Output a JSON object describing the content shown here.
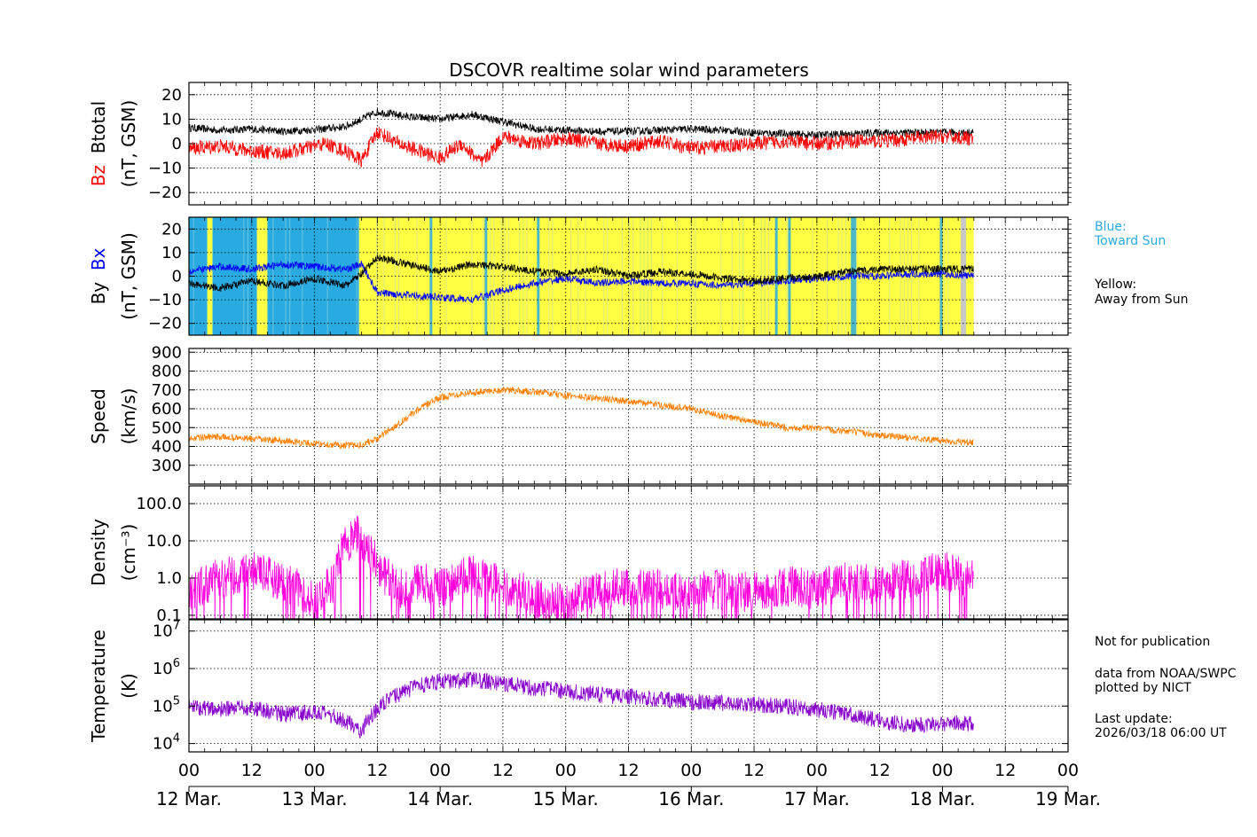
{
  "title": "DSCOVR realtime solar wind parameters",
  "colors": {
    "bz": "#ff0000",
    "btotal": "#000000",
    "bx": "#0000ff",
    "by": "#000000",
    "toward_sun": "#29abe2",
    "away_from_sun": "#ffff44",
    "no_data": "#c8c8c8",
    "speed": "#ff8000",
    "density": "#ff00dd",
    "temperature": "#8800cc"
  },
  "legend": {
    "blue_label": "Blue:",
    "blue_desc": "Toward Sun",
    "yellow_label": "Yellow:",
    "yellow_desc": "Away from Sun"
  },
  "notes": {
    "not_for_publication": "Not for publication",
    "data_from": "data from NOAA/SWPC",
    "plotted_by": "plotted by NICT",
    "last_update_label": "Last update:",
    "last_update_value": "2026/03/18 06:00 UT"
  },
  "chart_data": [
    {
      "id": "bz-btotal",
      "type": "line",
      "ylabel_colored": [
        {
          "text": "Bz",
          "color": "#ff0000"
        },
        {
          "text": "Btotal",
          "color": "#000000"
        }
      ],
      "ylabel_units": "(nT, GSM)",
      "ylim": [
        -25,
        25
      ],
      "yticks": [
        20,
        10,
        0,
        -10,
        -20
      ],
      "ytick_labels": [
        "20",
        "10",
        "0",
        "−10",
        "−20"
      ],
      "series": [
        {
          "name": "Btotal",
          "color": "#000000",
          "x": [
            0,
            6,
            12,
            18,
            22,
            26,
            30,
            36,
            42,
            48,
            54,
            60,
            66,
            72,
            78,
            84,
            90,
            96,
            102,
            108,
            114,
            120,
            126,
            132,
            138,
            144,
            150
          ],
          "y": [
            6.5,
            5.5,
            6,
            5,
            5.5,
            6,
            7,
            13,
            11,
            10,
            12,
            9,
            6,
            5.5,
            5,
            5,
            5.5,
            6,
            5.5,
            4.5,
            4,
            3.5,
            4,
            4.5,
            4.5,
            4.5,
            4.5
          ]
        },
        {
          "name": "Bz",
          "color": "#ff0000",
          "x": [
            0,
            6,
            12,
            18,
            22,
            26,
            30,
            33,
            36,
            40,
            44,
            48,
            52,
            56,
            60,
            66,
            72,
            78,
            84,
            90,
            96,
            102,
            108,
            114,
            120,
            126,
            132,
            138,
            144,
            150
          ],
          "y": [
            -2,
            -1,
            -3,
            -4,
            -2,
            0,
            -3,
            -7,
            5,
            0,
            -3,
            -6,
            0,
            -8,
            3,
            0,
            2,
            0,
            -1,
            1,
            -2,
            -1,
            0,
            1,
            0,
            1,
            1,
            2,
            3,
            2
          ]
        }
      ]
    },
    {
      "id": "by-bx",
      "type": "line",
      "ylabel_colored": [
        {
          "text": "By",
          "color": "#000000"
        },
        {
          "text": "Bx",
          "color": "#0000ff"
        }
      ],
      "ylabel_units": "(nT, GSM)",
      "ylim": [
        -25,
        25
      ],
      "yticks": [
        20,
        10,
        0,
        -10,
        -20
      ],
      "ytick_labels": [
        "20",
        "10",
        "0",
        "−10",
        "−20"
      ],
      "sector_background": [
        {
          "from": 0,
          "to": 3.5,
          "sector": "toward"
        },
        {
          "from": 3.5,
          "to": 4.5,
          "sector": "away"
        },
        {
          "from": 4.5,
          "to": 13,
          "sector": "toward"
        },
        {
          "from": 13,
          "to": 15,
          "sector": "away"
        },
        {
          "from": 15,
          "to": 32.5,
          "sector": "toward"
        },
        {
          "from": 32.5,
          "to": 150,
          "sector": "away"
        }
      ],
      "sector_stripes": [
        46,
        56.5,
        66.5,
        112,
        114.5,
        126.5,
        127,
        143.5,
        148
      ],
      "no_data_band": [
        147.5,
        148.5
      ],
      "series": [
        {
          "name": "Bx",
          "color": "#0000ff",
          "x": [
            0,
            6,
            12,
            18,
            24,
            30,
            33,
            36,
            42,
            48,
            54,
            60,
            66,
            72,
            78,
            84,
            90,
            96,
            102,
            108,
            114,
            120,
            126,
            132,
            138,
            144,
            150
          ],
          "y": [
            2,
            4,
            3,
            5,
            4,
            3,
            5,
            -7,
            -8,
            -9,
            -10,
            -6,
            -3,
            -1,
            -3,
            -2,
            -3,
            -3,
            -4,
            -3,
            -2,
            -1,
            0,
            0,
            1,
            1,
            0
          ]
        },
        {
          "name": "By",
          "color": "#000000",
          "x": [
            0,
            6,
            12,
            18,
            24,
            30,
            33,
            36,
            42,
            48,
            54,
            60,
            66,
            72,
            78,
            84,
            90,
            96,
            102,
            108,
            114,
            120,
            126,
            132,
            138,
            144,
            150
          ],
          "y": [
            -3,
            -5,
            -2,
            -4,
            -1,
            -4,
            1,
            8,
            5,
            2,
            5,
            4,
            2,
            1,
            3,
            0,
            2,
            1,
            -1,
            -2,
            -1,
            0,
            2,
            3,
            3,
            3,
            3
          ]
        }
      ]
    },
    {
      "id": "speed",
      "type": "line",
      "ylabel": "Speed",
      "ylabel_units": "(km/s)",
      "ylim": [
        200,
        920
      ],
      "yticks": [
        900,
        800,
        700,
        600,
        500,
        400,
        300
      ],
      "ytick_labels": [
        "900",
        "800",
        "700",
        "600",
        "500",
        "400",
        "300"
      ],
      "series": [
        {
          "name": "Speed",
          "color": "#ff8000",
          "x": [
            0,
            6,
            12,
            18,
            24,
            30,
            33,
            36,
            40,
            44,
            48,
            52,
            56,
            60,
            66,
            72,
            78,
            84,
            90,
            96,
            102,
            108,
            114,
            120,
            126,
            132,
            138,
            144,
            150
          ],
          "y": [
            445,
            450,
            440,
            430,
            415,
            405,
            410,
            440,
            520,
            600,
            660,
            680,
            690,
            700,
            690,
            670,
            655,
            640,
            620,
            600,
            560,
            530,
            500,
            495,
            480,
            460,
            445,
            430,
            420
          ]
        }
      ]
    },
    {
      "id": "density",
      "type": "line",
      "yscale": "log",
      "ylabel": "Density",
      "ylabel_units": "(cm⁻³)",
      "ylim": [
        0.08,
        300
      ],
      "yticks": [
        100,
        10,
        1,
        0.1
      ],
      "ytick_labels": [
        "100.0",
        "10.0",
        "1.0",
        "0.1"
      ],
      "series": [
        {
          "name": "Density",
          "color": "#ff00dd",
          "x": [
            0,
            6,
            12,
            18,
            24,
            28,
            30,
            32,
            34,
            36,
            40,
            44,
            48,
            54,
            60,
            66,
            72,
            78,
            84,
            90,
            96,
            102,
            108,
            114,
            120,
            126,
            132,
            138,
            144,
            150
          ],
          "y": [
            0.3,
            1.0,
            1.5,
            0.8,
            0.2,
            0.8,
            8,
            15,
            8,
            1.5,
            0.5,
            0.8,
            0.5,
            1.2,
            0.6,
            0.3,
            0.2,
            0.4,
            0.6,
            0.5,
            0.4,
            0.5,
            0.4,
            0.6,
            0.5,
            0.8,
            0.7,
            1.0,
            1.5,
            0.9
          ]
        }
      ]
    },
    {
      "id": "temperature",
      "type": "line",
      "yscale": "log",
      "ylabel": "Temperature",
      "ylabel_units": "(K)",
      "ylim": [
        6000,
        20000000
      ],
      "yticks": [
        10000000,
        1000000,
        100000,
        10000
      ],
      "ytick_labels": [
        "10^7",
        "10^6",
        "10^5",
        "10^4"
      ],
      "series": [
        {
          "name": "Temperature",
          "color": "#8800cc",
          "x": [
            0,
            6,
            12,
            18,
            24,
            30,
            33,
            36,
            40,
            44,
            48,
            54,
            60,
            66,
            72,
            78,
            84,
            90,
            96,
            102,
            108,
            114,
            120,
            126,
            132,
            138,
            144,
            150
          ],
          "y": [
            100000,
            80000,
            90000,
            60000,
            70000,
            40000,
            20000,
            80000,
            200000,
            350000,
            450000,
            500000,
            400000,
            300000,
            250000,
            200000,
            180000,
            150000,
            130000,
            120000,
            110000,
            100000,
            80000,
            60000,
            40000,
            30000,
            35000,
            35000
          ]
        }
      ]
    }
  ],
  "time_axis": {
    "xlim": [
      0,
      168
    ],
    "data_end": 150,
    "hour_ticks": [
      "00",
      "12",
      "00",
      "12",
      "00",
      "12",
      "00",
      "12",
      "00",
      "12",
      "00",
      "12",
      "00",
      "12",
      "00"
    ],
    "day_labels": [
      "12 Mar.",
      "13 Mar.",
      "14 Mar.",
      "15 Mar.",
      "16 Mar.",
      "17 Mar.",
      "18 Mar.",
      "19 Mar."
    ]
  }
}
